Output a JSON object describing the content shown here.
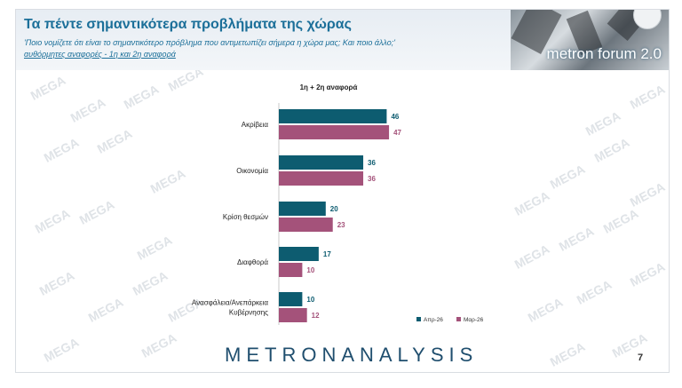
{
  "header": {
    "title": "Τα πέντε σημαντικότερα προβλήματα της χώρας",
    "subtitle": "'Ποιο νομίζετε ότι είναι το σημαντικότερο πρόβλημα που αντιμετωπίζει σήμερα η χώρα μας; Και ποιο άλλο;'",
    "subtitle2": "αυθόρμητες αναφορές - 1η και 2η αναφορά",
    "brand": "metron forum 2.0"
  },
  "watermark_text": "MEGA",
  "colors": {
    "apr": "#0d5c70",
    "mar": "#a4527a",
    "title": "#1b6f99"
  },
  "chart_data": {
    "type": "bar",
    "orientation": "horizontal",
    "title": "1η + 2η αναφορά",
    "categories": [
      "Ακρίβεια",
      "Οικονομία",
      "Κρίση θεσμών",
      "Διαφθορά",
      "Ανασφάλεια/Ανεπάρκεια Κυβέρνησης"
    ],
    "category_lines": [
      [
        "Ακρίβεια"
      ],
      [
        "Οικονομία"
      ],
      [
        "Κρίση θεσμών"
      ],
      [
        "Διαφθορά"
      ],
      [
        "Ανασφάλεια/Ανεπάρκεια",
        "Κυβέρνησης"
      ]
    ],
    "series": [
      {
        "name": "Απρ-26",
        "values": [
          46,
          36,
          20,
          17,
          10
        ]
      },
      {
        "name": "Μαρ-26",
        "values": [
          47,
          36,
          23,
          10,
          12
        ]
      }
    ],
    "xlim": [
      0,
      100
    ],
    "grid": false,
    "legend_position": "bottom-right"
  },
  "footer": {
    "logo": "METRONANALYSIS",
    "page": "7"
  }
}
